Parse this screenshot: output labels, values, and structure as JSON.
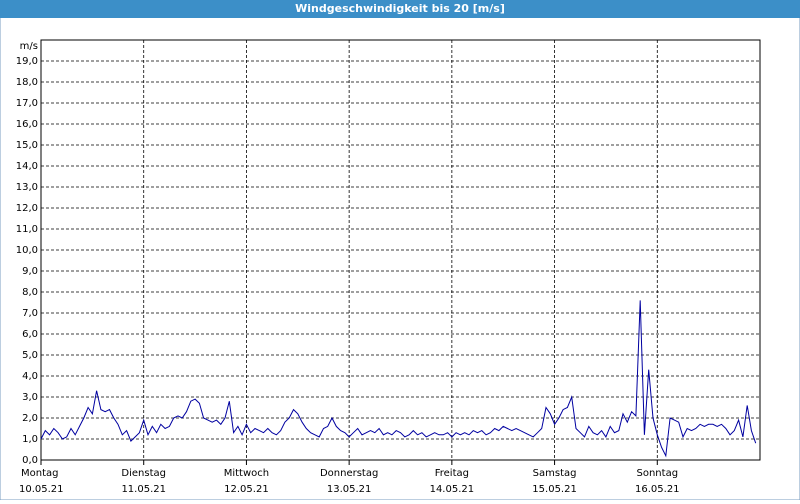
{
  "chart_data": {
    "type": "line",
    "title": "Windgeschwindigkeit bis 20 [m/s]",
    "y_unit": "m/s",
    "ylim": [
      0,
      20
    ],
    "yticks": [
      {
        "value": 0,
        "label": "0,0"
      },
      {
        "value": 1,
        "label": "1,0"
      },
      {
        "value": 2,
        "label": "2,0"
      },
      {
        "value": 3,
        "label": "3,0"
      },
      {
        "value": 4,
        "label": "4,0"
      },
      {
        "value": 5,
        "label": "5,0"
      },
      {
        "value": 6,
        "label": "6,0"
      },
      {
        "value": 7,
        "label": "7,0"
      },
      {
        "value": 8,
        "label": "8,0"
      },
      {
        "value": 9,
        "label": "9,0"
      },
      {
        "value": 10,
        "label": "10,0"
      },
      {
        "value": 11,
        "label": "11,0"
      },
      {
        "value": 12,
        "label": "12,0"
      },
      {
        "value": 13,
        "label": "13,0"
      },
      {
        "value": 14,
        "label": "14,0"
      },
      {
        "value": 15,
        "label": "15,0"
      },
      {
        "value": 16,
        "label": "16,0"
      },
      {
        "value": 17,
        "label": "17,0"
      },
      {
        "value": 18,
        "label": "18,0"
      },
      {
        "value": 19,
        "label": "19,0"
      }
    ],
    "xlim": [
      0,
      168
    ],
    "xticks": [
      {
        "value": 0,
        "label": "Montag"
      },
      {
        "value": 24,
        "label": "Dienstag"
      },
      {
        "value": 48,
        "label": "Mittwoch"
      },
      {
        "value": 72,
        "label": "Donnerstag"
      },
      {
        "value": 96,
        "label": "Freitag"
      },
      {
        "value": 120,
        "label": "Samstag"
      },
      {
        "value": 144,
        "label": "Sonntag"
      }
    ],
    "xtick_dates": [
      "10.05.21",
      "11.05.21",
      "12.05.21",
      "13.05.21",
      "14.05.21",
      "15.05.21",
      "16.05.21"
    ],
    "grid": true,
    "color": "#0000a0",
    "values": [
      1.0,
      1.4,
      1.2,
      1.5,
      1.3,
      1.0,
      1.1,
      1.5,
      1.2,
      1.6,
      2.0,
      2.5,
      2.2,
      3.3,
      2.4,
      2.3,
      2.4,
      2.0,
      1.7,
      1.2,
      1.4,
      0.9,
      1.1,
      1.3,
      1.9,
      1.2,
      1.6,
      1.3,
      1.7,
      1.5,
      1.6,
      2.0,
      2.1,
      2.0,
      2.3,
      2.8,
      2.9,
      2.7,
      2.0,
      1.9,
      1.8,
      1.9,
      1.7,
      2.0,
      2.8,
      1.3,
      1.6,
      1.2,
      1.7,
      1.3,
      1.5,
      1.4,
      1.3,
      1.5,
      1.3,
      1.2,
      1.4,
      1.8,
      2.0,
      2.4,
      2.2,
      1.8,
      1.5,
      1.3,
      1.2,
      1.1,
      1.5,
      1.6,
      2.0,
      1.6,
      1.4,
      1.3,
      1.1,
      1.3,
      1.5,
      1.2,
      1.3,
      1.4,
      1.3,
      1.5,
      1.2,
      1.3,
      1.2,
      1.4,
      1.3,
      1.1,
      1.2,
      1.4,
      1.2,
      1.3,
      1.1,
      1.2,
      1.3,
      1.2,
      1.2,
      1.3,
      1.1,
      1.3,
      1.2,
      1.3,
      1.2,
      1.4,
      1.3,
      1.4,
      1.2,
      1.3,
      1.5,
      1.4,
      1.6,
      1.5,
      1.4,
      1.5,
      1.4,
      1.3,
      1.2,
      1.1,
      1.3,
      1.5,
      2.5,
      2.2,
      1.7,
      2.0,
      2.4,
      2.5,
      3.0,
      1.5,
      1.3,
      1.1,
      1.6,
      1.3,
      1.2,
      1.4,
      1.1,
      1.6,
      1.3,
      1.4,
      2.2,
      1.8,
      2.3,
      2.1,
      7.6,
      1.2,
      4.3,
      2.0,
      1.2,
      0.6,
      0.2,
      2.0,
      1.9,
      1.8,
      1.1,
      1.5,
      1.4,
      1.5,
      1.7,
      1.6,
      1.7,
      1.7,
      1.6,
      1.7,
      1.5,
      1.2,
      1.4,
      1.9,
      1.1,
      2.6,
      1.4,
      0.8
    ]
  }
}
